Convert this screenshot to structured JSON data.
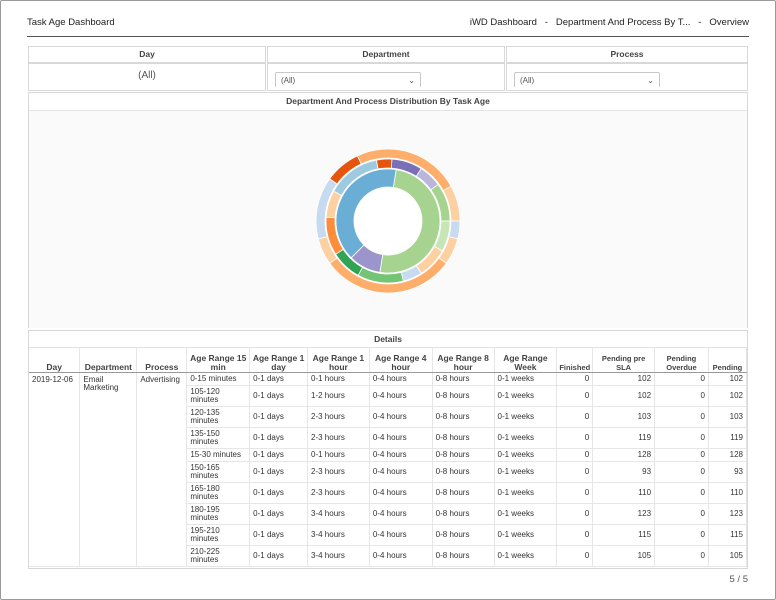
{
  "header": {
    "title": "Task Age Dashboard",
    "breadcrumb": [
      "iWD Dashboard",
      "Department And Process By T...",
      "Overview"
    ]
  },
  "filters": {
    "day": {
      "label": "Day",
      "value": "(All)"
    },
    "department": {
      "label": "Department",
      "value": "(All)"
    },
    "process": {
      "label": "Process",
      "value": "(All)"
    }
  },
  "chart": {
    "title": "Department And Process Distribution By Task Age",
    "chart_data": {
      "type": "pie",
      "style": "multi-ring-donut",
      "rings": [
        {
          "name": "",
          "slices": [
            {
              "value": 50,
              "color": "#a6d38f"
            },
            {
              "value": 10,
              "color": "#9b95cc"
            },
            {
              "value": 40,
              "color": "#6aaed6"
            }
          ]
        },
        {
          "name": "",
          "slices": [
            {
              "value": 8,
              "color": "#7b6fb8"
            },
            {
              "value": 6,
              "color": "#b9b5dc"
            },
            {
              "value": 10,
              "color": "#a6d38f"
            },
            {
              "value": 8,
              "color": "#c7e6b7"
            },
            {
              "value": 8,
              "color": "#fdd0a2"
            },
            {
              "value": 5,
              "color": "#c6dbef"
            },
            {
              "value": 12,
              "color": "#74c476"
            },
            {
              "value": 8,
              "color": "#31a354"
            },
            {
              "value": 10,
              "color": "#fd8d3c"
            },
            {
              "value": 7,
              "color": "#fdd0a2"
            },
            {
              "value": 14,
              "color": "#9ecae1"
            },
            {
              "value": 4,
              "color": "#e6550d"
            }
          ]
        },
        {
          "name": "",
          "slices": [
            {
              "value": 24,
              "color": "#fdae6b"
            },
            {
              "value": 8,
              "color": "#fdd0a2"
            },
            {
              "value": 4,
              "color": "#c6dbef"
            },
            {
              "value": 6,
              "color": "#fdd0a2"
            },
            {
              "value": 30,
              "color": "#fdae6b"
            },
            {
              "value": 6,
              "color": "#fdd0a2"
            },
            {
              "value": 14,
              "color": "#c6dbef"
            },
            {
              "value": 8,
              "color": "#e6550d"
            }
          ]
        }
      ]
    }
  },
  "details": {
    "title": "Details",
    "columns": [
      "Day",
      "Department",
      "Process",
      "Age Range 15 min",
      "Age Range 1 day",
      "Age Range 1 hour",
      "Age Range 4 hour",
      "Age Range 8 hour",
      "Age Range Week",
      "Finished",
      "Pending pre SLA",
      "Pending Overdue",
      "Pending"
    ],
    "group": {
      "day": "2019-12-06",
      "department": "Email Marketing",
      "process": "Advertising"
    },
    "rows": [
      {
        "r15": "0-15 minutes",
        "r1d": "0-1 days",
        "r1h": "0-1 hours",
        "r4h": "0-4 hours",
        "r8h": "0-8 hours",
        "rw": "0-1 weeks",
        "finished": "0",
        "pre_sla": "102",
        "overdue": "0",
        "pending": "102"
      },
      {
        "r15": "105-120 minutes",
        "r1d": "0-1 days",
        "r1h": "1-2 hours",
        "r4h": "0-4 hours",
        "r8h": "0-8 hours",
        "rw": "0-1 weeks",
        "finished": "0",
        "pre_sla": "102",
        "overdue": "0",
        "pending": "102"
      },
      {
        "r15": "120-135 minutes",
        "r1d": "0-1 days",
        "r1h": "2-3 hours",
        "r4h": "0-4 hours",
        "r8h": "0-8 hours",
        "rw": "0-1 weeks",
        "finished": "0",
        "pre_sla": "103",
        "overdue": "0",
        "pending": "103"
      },
      {
        "r15": "135-150 minutes",
        "r1d": "0-1 days",
        "r1h": "2-3 hours",
        "r4h": "0-4 hours",
        "r8h": "0-8 hours",
        "rw": "0-1 weeks",
        "finished": "0",
        "pre_sla": "119",
        "overdue": "0",
        "pending": "119"
      },
      {
        "r15": "15-30 minutes",
        "r1d": "0-1 days",
        "r1h": "0-1 hours",
        "r4h": "0-4 hours",
        "r8h": "0-8 hours",
        "rw": "0-1 weeks",
        "finished": "0",
        "pre_sla": "128",
        "overdue": "0",
        "pending": "128"
      },
      {
        "r15": "150-165 minutes",
        "r1d": "0-1 days",
        "r1h": "2-3 hours",
        "r4h": "0-4 hours",
        "r8h": "0-8 hours",
        "rw": "0-1 weeks",
        "finished": "0",
        "pre_sla": "93",
        "overdue": "0",
        "pending": "93"
      },
      {
        "r15": "165-180 minutes",
        "r1d": "0-1 days",
        "r1h": "2-3 hours",
        "r4h": "0-4 hours",
        "r8h": "0-8 hours",
        "rw": "0-1 weeks",
        "finished": "0",
        "pre_sla": "110",
        "overdue": "0",
        "pending": "110"
      },
      {
        "r15": "180-195 minutes",
        "r1d": "0-1 days",
        "r1h": "3-4 hours",
        "r4h": "0-4 hours",
        "r8h": "0-8 hours",
        "rw": "0-1 weeks",
        "finished": "0",
        "pre_sla": "123",
        "overdue": "0",
        "pending": "123"
      },
      {
        "r15": "195-210 minutes",
        "r1d": "0-1 days",
        "r1h": "3-4 hours",
        "r4h": "0-4 hours",
        "r8h": "0-8 hours",
        "rw": "0-1 weeks",
        "finished": "0",
        "pre_sla": "115",
        "overdue": "0",
        "pending": "115"
      },
      {
        "r15": "210-225 minutes",
        "r1d": "0-1 days",
        "r1h": "3-4 hours",
        "r4h": "0-4 hours",
        "r8h": "0-8 hours",
        "rw": "0-1 weeks",
        "finished": "0",
        "pre_sla": "105",
        "overdue": "0",
        "pending": "105"
      }
    ]
  },
  "pager": {
    "text": "5 / 5"
  }
}
